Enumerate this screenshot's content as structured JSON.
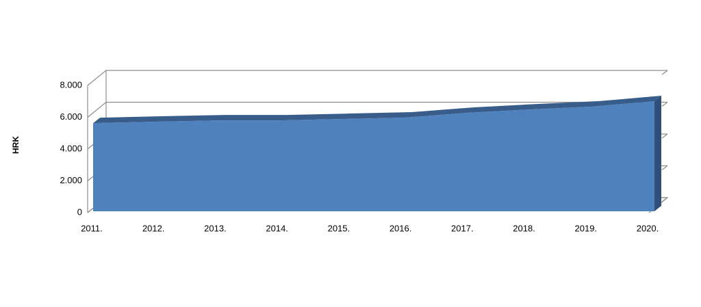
{
  "chart_data": {
    "type": "area3d",
    "y_label": "HRK",
    "categories": [
      "2011.",
      "2012.",
      "2013.",
      "2014.",
      "2015.",
      "2016.",
      "2017.",
      "2018.",
      "2019.",
      "2020."
    ],
    "values": [
      5630,
      5720,
      5800,
      5800,
      5890,
      5980,
      6280,
      6490,
      6670,
      7010
    ],
    "color": "#4f81bd",
    "ylim": [
      0,
      8000
    ],
    "yticks": [
      0,
      {
        "value": 2000,
        "label": "2.000"
      },
      {
        "value": 4000,
        "label": "4.000"
      },
      {
        "value": 6000,
        "label": "6.000"
      },
      {
        "value": 8000,
        "label": "8.000"
      }
    ],
    "grid": true
  }
}
